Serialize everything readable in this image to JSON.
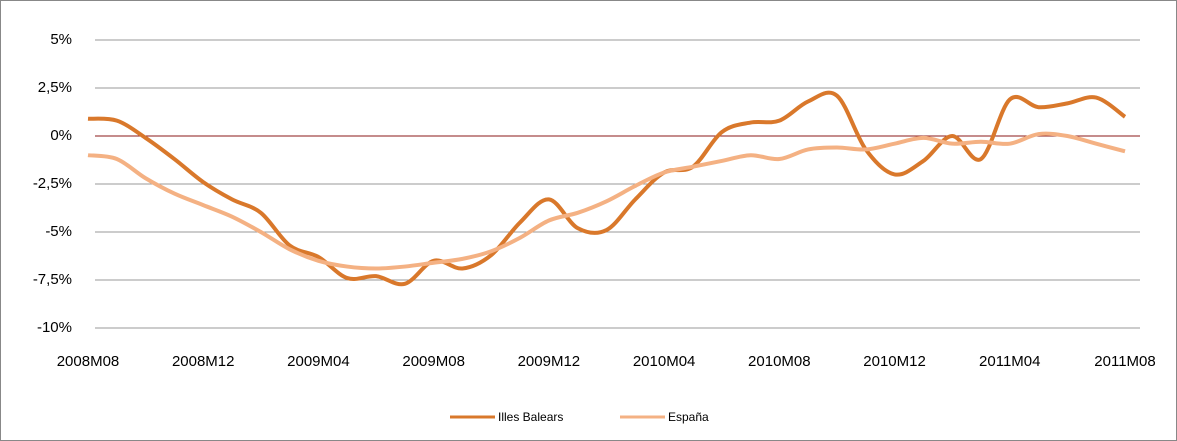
{
  "chart_data": {
    "type": "line",
    "categories": [
      "2008M08",
      null,
      null,
      null,
      "2008M12",
      null,
      null,
      null,
      "2009M04",
      null,
      null,
      null,
      "2009M08",
      null,
      null,
      null,
      "2009M12",
      null,
      null,
      null,
      "2010M04",
      null,
      null,
      null,
      "2010M08",
      null,
      null,
      null,
      "2010M12",
      null,
      null,
      null,
      "2011M04",
      null,
      null,
      null,
      "2011M08"
    ],
    "series": [
      {
        "name": "Illes Balears",
        "color": "#d9782b",
        "values": [
          0.9,
          0.8,
          -0.1,
          -1.2,
          -2.4,
          -3.3,
          -4.0,
          -5.7,
          -6.3,
          -7.4,
          -7.3,
          -7.7,
          -6.5,
          -6.9,
          -6.2,
          -4.5,
          -3.3,
          -4.8,
          -4.9,
          -3.3,
          -1.9,
          -1.6,
          0.2,
          0.7,
          0.8,
          1.8,
          2.1,
          -0.7,
          -2.0,
          -1.3,
          0.0,
          -1.2,
          1.9,
          1.5,
          1.7,
          2.0,
          1.0
        ]
      },
      {
        "name": "España",
        "color": "#f4b183",
        "values": [
          -1.0,
          -1.2,
          -2.2,
          -3.0,
          -3.6,
          -4.2,
          -5.0,
          -5.9,
          -6.5,
          -6.8,
          -6.9,
          -6.8,
          -6.6,
          -6.4,
          -6.0,
          -5.3,
          -4.4,
          -4.0,
          -3.4,
          -2.6,
          -1.9,
          -1.6,
          -1.3,
          -1.0,
          -1.2,
          -0.7,
          -0.6,
          -0.7,
          -0.4,
          -0.1,
          -0.4,
          -0.3,
          -0.4,
          0.1,
          0.0,
          -0.4,
          -0.8
        ]
      }
    ],
    "ylim": [
      -10,
      5
    ],
    "yticks": [
      {
        "value": -10,
        "label": "-10%"
      },
      {
        "value": -7.5,
        "label": "-7,5%"
      },
      {
        "value": -5,
        "label": "-5%"
      },
      {
        "value": -2.5,
        "label": "-2,5%"
      },
      {
        "value": 0,
        "label": "0%"
      },
      {
        "value": 2.5,
        "label": "2,5%"
      },
      {
        "value": 5,
        "label": "5%"
      }
    ],
    "grid": true,
    "legend": "bottom"
  }
}
